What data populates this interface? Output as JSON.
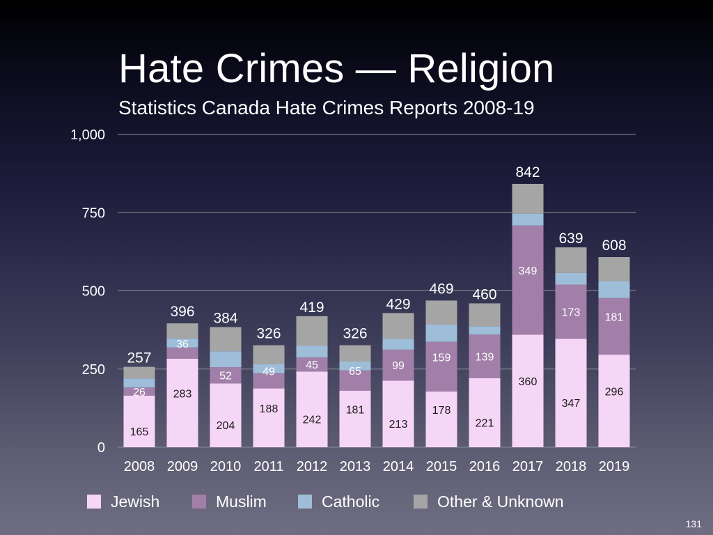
{
  "slide": {
    "title": "Hate Crimes — Religion",
    "subtitle": "Statistics Canada Hate Crimes Reports 2008-19",
    "page_number": "131"
  },
  "colors": {
    "jewish": "#f6d6f6",
    "muslim": "#a17fa8",
    "catholic": "#9ebdd9",
    "other": "#a5a5a5",
    "gridline": "#8e8e96",
    "label_dark": "#1a1a1a",
    "label_light": "#ffffff"
  },
  "chart_data": {
    "type": "bar",
    "stacked": true,
    "title": "Hate Crimes — Religion",
    "subtitle": "Statistics Canada Hate Crimes Reports 2008-19",
    "categories": [
      "2008",
      "2009",
      "2010",
      "2011",
      "2012",
      "2013",
      "2014",
      "2015",
      "2016",
      "2017",
      "2018",
      "2019"
    ],
    "series": [
      {
        "name": "Jewish",
        "values": [
          165,
          283,
          204,
          188,
          242,
          181,
          213,
          178,
          221,
          360,
          347,
          296
        ]
      },
      {
        "name": "Muslim",
        "values": [
          26,
          36,
          52,
          49,
          45,
          65,
          99,
          159,
          139,
          349,
          173,
          181
        ]
      },
      {
        "name": "Catholic",
        "values": [
          29,
          29,
          51,
          28,
          38,
          28,
          35,
          55,
          27,
          38,
          37,
          54
        ]
      },
      {
        "name": "Other & Unknown",
        "values": [
          37,
          48,
          77,
          61,
          94,
          52,
          82,
          77,
          73,
          95,
          82,
          77
        ]
      }
    ],
    "totals": [
      257,
      396,
      384,
      326,
      419,
      326,
      429,
      469,
      460,
      842,
      639,
      608
    ],
    "ylim": [
      0,
      1000
    ],
    "yticks": [
      0,
      250,
      500,
      750,
      1000
    ],
    "ytick_labels": [
      "0",
      "250",
      "500",
      "750",
      "1,000"
    ],
    "grid": true,
    "legend_position": "bottom",
    "xlabel": "",
    "ylabel": ""
  }
}
